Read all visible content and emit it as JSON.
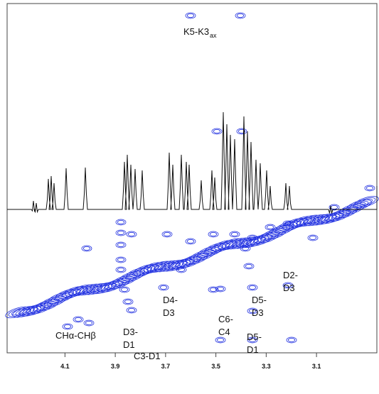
{
  "chart_data": {
    "type": "nmr",
    "xlim": [
      4.33,
      2.86
    ],
    "xticks": [
      4.1,
      3.9,
      3.7,
      3.5,
      3.3,
      3.1
    ],
    "annotations": [
      {
        "text": "K5-K3",
        "sub": "ax"
      },
      {
        "lines": [
          "CHα-CHβ"
        ]
      },
      {
        "lines": [
          "D3-",
          "D1"
        ]
      },
      {
        "lines": [
          "C3-D1"
        ]
      },
      {
        "lines": [
          "D4-",
          "D3"
        ]
      },
      {
        "lines": [
          "C6-",
          "C4"
        ]
      },
      {
        "lines": [
          "D5-",
          "D3"
        ]
      },
      {
        "lines": [
          "D2-",
          "D3"
        ]
      },
      {
        "lines": [
          "D5-",
          "D1"
        ]
      }
    ]
  }
}
